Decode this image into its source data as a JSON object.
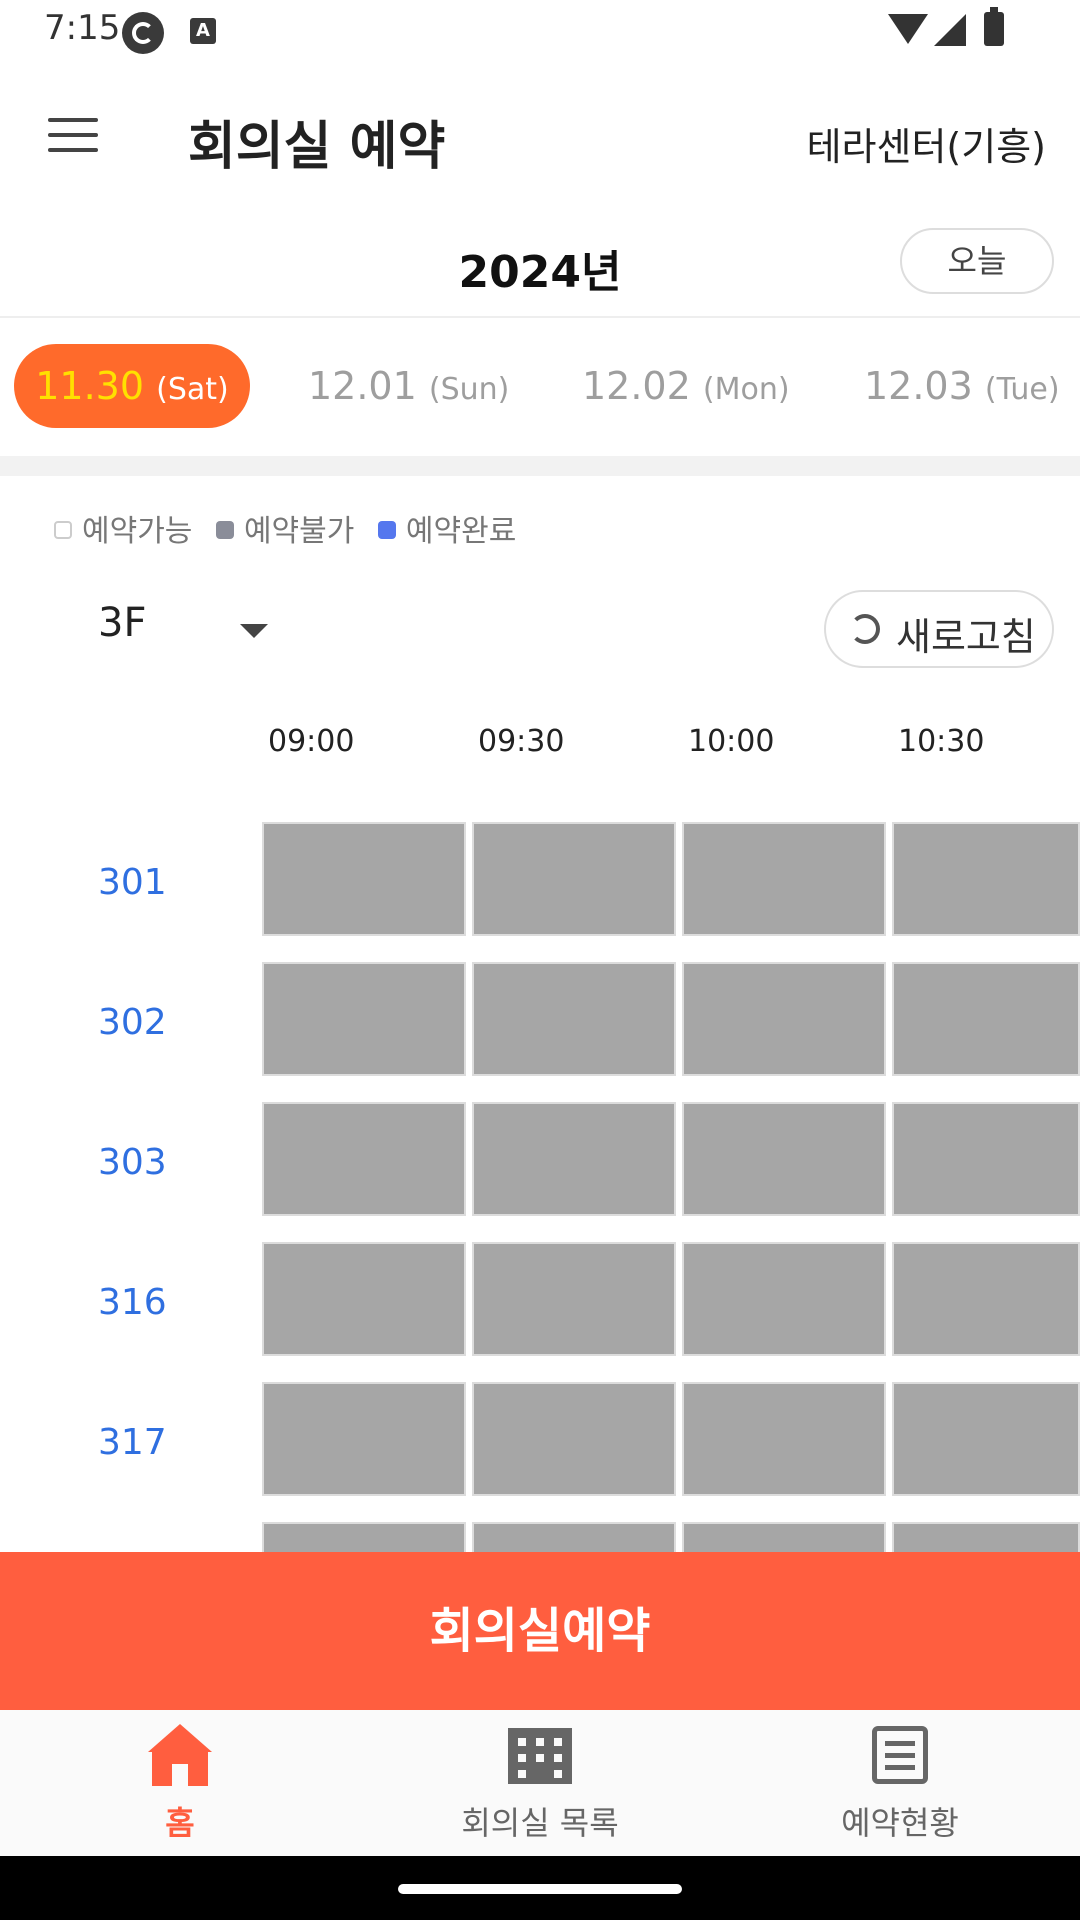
{
  "status_bar": {
    "time": "7:15",
    "icon_a": "A"
  },
  "header": {
    "title": "회의실 예약",
    "center": "테라센터(기흥)"
  },
  "year": {
    "label": "2024년",
    "today_button": "오늘"
  },
  "date_tabs": [
    {
      "date": "11.30",
      "dow": "(Sat)",
      "active": true
    },
    {
      "date": "12.01",
      "dow": "(Sun)",
      "active": false
    },
    {
      "date": "12.02",
      "dow": "(Mon)",
      "active": false
    },
    {
      "date": "12.03",
      "dow": "(Tue)",
      "active": false
    }
  ],
  "legend": {
    "available": "예약가능",
    "unavailable": "예약불가",
    "completed": "예약완료"
  },
  "floor": {
    "value": "3F"
  },
  "refresh": {
    "label": "새로고침"
  },
  "times": [
    "09:00",
    "09:30",
    "10:00",
    "10:30"
  ],
  "rooms": [
    "301",
    "302",
    "303",
    "316",
    "317"
  ],
  "reserve_button": "회의실예약",
  "bottom_nav": {
    "home": "홈",
    "rooms": "회의실 목록",
    "status": "예약현황"
  },
  "colors": {
    "accent": "#ff6a2b",
    "reserve": "#ff5e3f",
    "room_label": "#2f6fe0",
    "unavailable_slot": "#a6a6a6"
  }
}
